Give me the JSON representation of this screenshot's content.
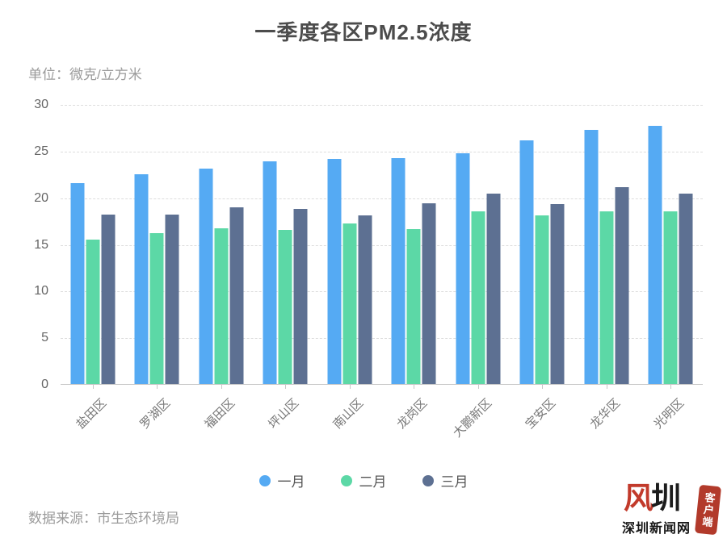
{
  "title": "一季度各区PM2.5浓度",
  "unit_label": "单位：微克/立方米",
  "source_label": "数据来源：市生态环境局",
  "logo": {
    "glyph_red": "风",
    "glyph_black": "圳",
    "site_name": "深圳新闻网",
    "badge": "客户端"
  },
  "colors": {
    "january": "#55aaf3",
    "february": "#5cd8a6",
    "march": "#5d7092",
    "grid": "#dcdcdc",
    "axis": "#c8c8c8"
  },
  "chart_data": {
    "type": "bar",
    "title": "一季度各区PM2.5浓度",
    "xlabel": "",
    "ylabel": "单位：微克/立方米",
    "categories": [
      "盐田区",
      "罗湖区",
      "福田区",
      "坪山区",
      "南山区",
      "龙岗区",
      "大鹏新区",
      "宝安区",
      "龙华区",
      "光明区"
    ],
    "series": [
      {
        "name": "一月",
        "color": "#55aaf3",
        "values": [
          21.5,
          22.5,
          23.1,
          23.9,
          24.1,
          24.2,
          24.7,
          26.1,
          27.2,
          27.7
        ]
      },
      {
        "name": "二月",
        "color": "#5cd8a6",
        "values": [
          15.5,
          16.2,
          16.7,
          16.5,
          17.2,
          16.6,
          18.5,
          18.1,
          18.5,
          18.5
        ]
      },
      {
        "name": "三月",
        "color": "#5d7092",
        "values": [
          18.2,
          18.2,
          18.9,
          18.8,
          18.1,
          19.4,
          20.4,
          19.3,
          21.1,
          20.4
        ]
      }
    ],
    "ylim": [
      0,
      30
    ],
    "yticks": [
      0,
      5,
      10,
      15,
      20,
      25,
      30
    ],
    "grid": true,
    "grid_style": "dashed",
    "legend_position": "bottom"
  }
}
